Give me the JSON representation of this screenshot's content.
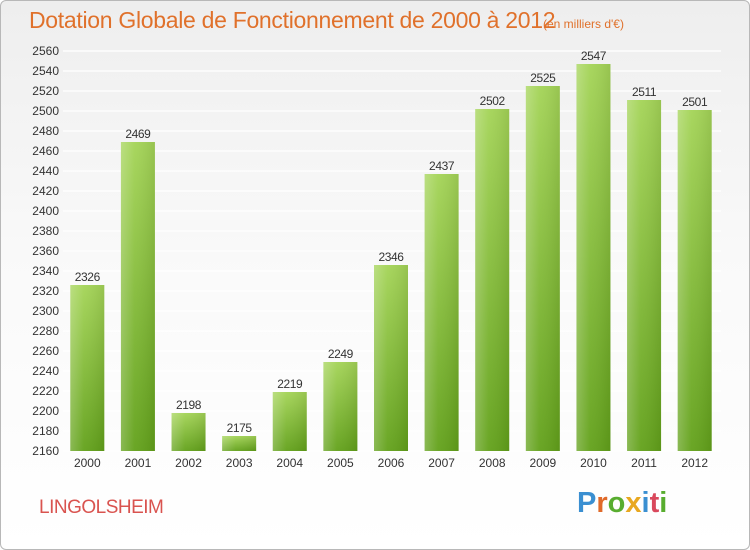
{
  "header": {
    "title": "Dotation Globale de Fonctionnement de 2000 à 2012",
    "unit_note": "(en milliers d'€)"
  },
  "commune": "LINGOLSHEIM",
  "logo": {
    "text": "Proxiti",
    "letter_colors": [
      "#3a8fd1",
      "#e06a2a",
      "#58ad2f",
      "#e8a820",
      "#3a8fd1",
      "#d9485c",
      "#58ad2f"
    ]
  },
  "colors": {
    "bar_top": "#a4d457",
    "bar_bottom": "#62a11a",
    "grid": "#ffffff",
    "axis_text": "#333333",
    "title": "#e0712b",
    "commune": "#d9534f"
  },
  "chart_data": {
    "type": "bar",
    "title": "Dotation Globale de Fonctionnement de 2000 à 2012",
    "subtitle": "(en milliers d'€)",
    "categories": [
      "2000",
      "2001",
      "2002",
      "2003",
      "2004",
      "2005",
      "2006",
      "2007",
      "2008",
      "2009",
      "2010",
      "2011",
      "2012"
    ],
    "values": [
      2326,
      2469,
      2198,
      2175,
      2219,
      2249,
      2346,
      2437,
      2502,
      2525,
      2547,
      2511,
      2501
    ],
    "ylim": [
      2160,
      2560
    ],
    "ytick_step": 20,
    "grid": true,
    "data_labels": true
  }
}
